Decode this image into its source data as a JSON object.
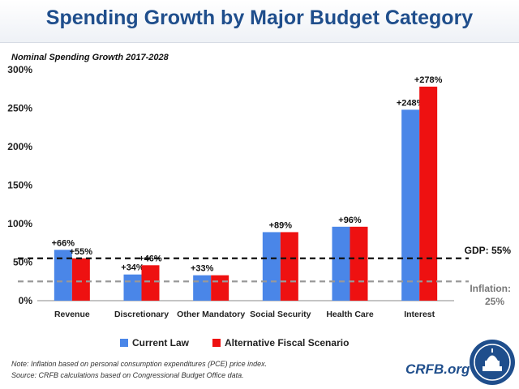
{
  "header": {
    "title": "Spending Growth by Major Budget Category"
  },
  "chart_data": {
    "type": "bar",
    "title": "Spending Growth by Major Budget Category",
    "subtitle": "Nominal Spending Growth 2017-2028",
    "xlabel": "",
    "ylabel": "",
    "ylim": [
      0,
      300
    ],
    "yticks": [
      0,
      50,
      100,
      150,
      200,
      250,
      300
    ],
    "ytick_labels": [
      "0%",
      "50%",
      "100%",
      "150%",
      "200%",
      "250%",
      "300%"
    ],
    "grid": false,
    "legend_position": "bottom-center",
    "categories": [
      "Revenue",
      "Discretionary",
      "Other Mandatory",
      "Social Security",
      "Health Care",
      "Interest"
    ],
    "series": [
      {
        "name": "Current Law",
        "color": "#4a86e8",
        "values": [
          66,
          34,
          33,
          89,
          96,
          248
        ],
        "labels": [
          "+66%",
          "+34%",
          "+33%",
          "",
          "",
          "+248%"
        ]
      },
      {
        "name": "Alternative Fiscal Scenario",
        "color": "#ee1111",
        "values": [
          55,
          46,
          33,
          89,
          96,
          278
        ],
        "labels": [
          "+55%",
          "+46%",
          "",
          "",
          "",
          "+278%"
        ]
      }
    ],
    "shared_labels": [
      "",
      "",
      "",
      "+89%",
      "+96%",
      ""
    ],
    "reference_lines": [
      {
        "value": 55,
        "label": "GDP: 55%",
        "color": "#111111"
      },
      {
        "value": 25,
        "label_lines": [
          "Inflation:",
          "25%"
        ],
        "color": "#999999"
      }
    ]
  },
  "footnotes": {
    "note": "Note: Inflation based on personal consumption expenditures (PCE) price index.",
    "source": "Source: CRFB calculations based on Congressional Budget Office data."
  },
  "brand": {
    "text": "CRFB.org"
  }
}
